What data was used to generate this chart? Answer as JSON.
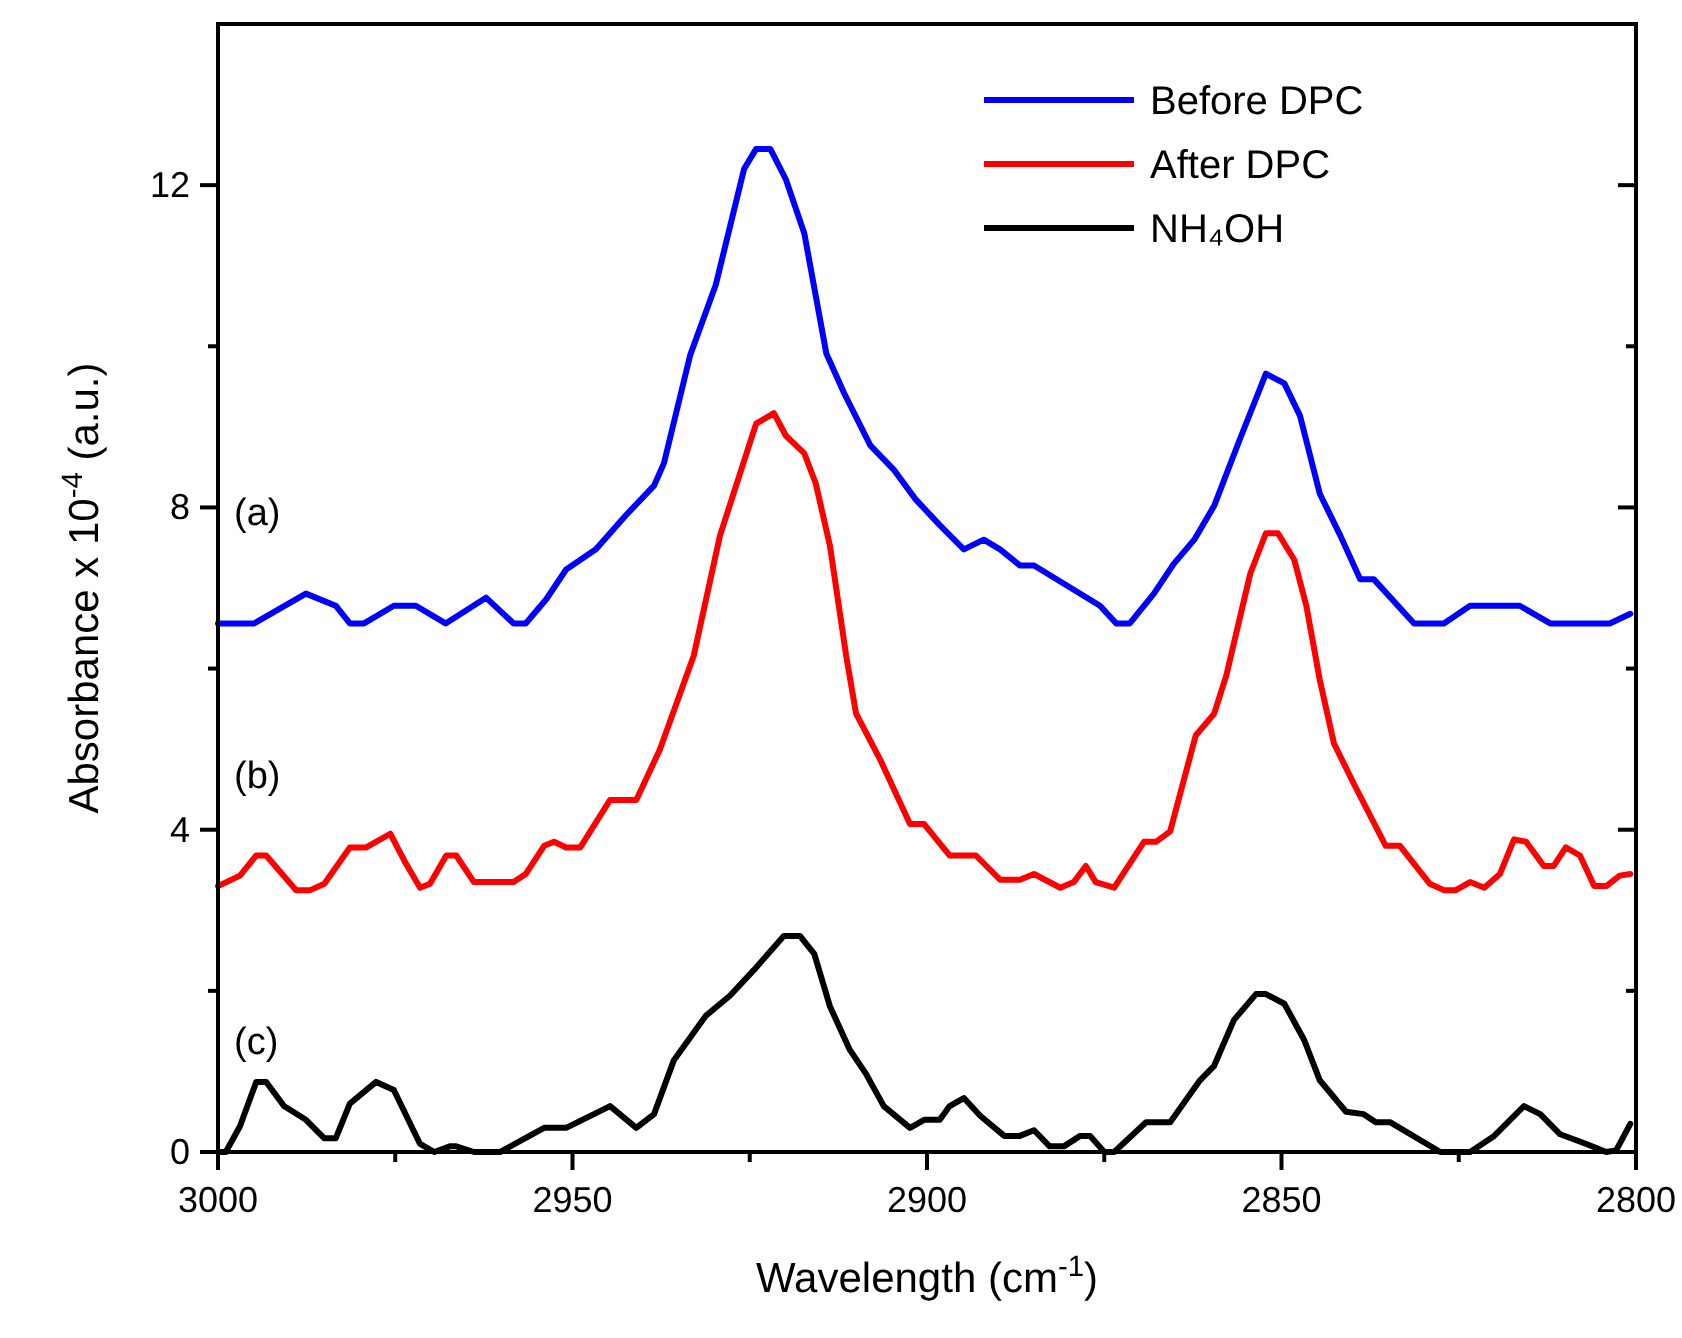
{
  "chart_data": {
    "type": "line",
    "xlabel": "Wavelength (cm$^{-1}$)",
    "ylabel": "Absorbance x 10$^{-4}$ (a.u.)",
    "xlim": [
      3000,
      2800
    ],
    "ylim": [
      0,
      14
    ],
    "xticks": [
      3000,
      {
        "value": 2975,
        "label": null
      },
      2950,
      {
        "value": 2925,
        "label": null
      },
      2900,
      {
        "value": 2875,
        "label": null
      },
      2850,
      {
        "value": 2825,
        "label": null
      },
      2800
    ],
    "yticks": [
      0,
      {
        "value": 2,
        "label": null
      },
      4,
      {
        "value": 6,
        "label": null
      },
      8,
      {
        "value": 10,
        "label": null
      },
      12
    ],
    "legend": "top right",
    "grid": false,
    "marker": "none",
    "line_style": "solid",
    "annotations": [
      "(a)",
      "(b)",
      "(c)"
    ],
    "series": [
      {
        "name": "Before DPC",
        "color": "#0000ff",
        "x": [
          3000,
          2994.9,
          2987.6,
          2983.4,
          2981.4,
          2979.4,
          2975.2,
          2972.1,
          2967.9,
          2962.2,
          2958.3,
          2956.6,
          2953.7,
          2950.9,
          2946.7,
          2942.5,
          2938.5,
          2937.1,
          2933.4,
          2929.8,
          2925.8,
          2924.1,
          2922.1,
          2919.9,
          2917.3,
          2914.2,
          2911.7,
          2908,
          2904.7,
          2901.6,
          2898.2,
          2894.8,
          2892,
          2889.7,
          2886.9,
          2884.9,
          2875.6,
          2873.3,
          2871.4,
          2868,
          2865.2,
          2862.3,
          2859.5,
          2855.9,
          2852.2,
          2849.6,
          2847.4,
          2844.6,
          2841.7,
          2838.9,
          2837,
          2831.3,
          2827.1,
          2823.4,
          2816.4,
          2812.1,
          2803.7,
          2800.8
        ],
        "values": [
          6.56,
          6.56,
          6.93,
          6.78,
          6.56,
          6.56,
          6.78,
          6.78,
          6.56,
          6.88,
          6.56,
          6.56,
          6.86,
          7.23,
          7.48,
          7.9,
          8.27,
          8.55,
          9.89,
          10.76,
          12.2,
          12.45,
          12.45,
          12.07,
          11.4,
          9.91,
          9.42,
          8.77,
          8.47,
          8.1,
          7.78,
          7.48,
          7.6,
          7.48,
          7.28,
          7.28,
          6.78,
          6.56,
          6.56,
          6.93,
          7.3,
          7.6,
          8.02,
          8.84,
          9.66,
          9.54,
          9.14,
          8.17,
          7.65,
          7.11,
          7.11,
          6.56,
          6.56,
          6.78,
          6.78,
          6.56,
          6.56,
          6.68
        ]
      },
      {
        "name": "After DPC",
        "color": "#ff0000",
        "x": [
          3000,
          2996.9,
          2994.6,
          2993.2,
          2989,
          2987,
          2985,
          2981.4,
          2979.1,
          2975.7,
          2973.5,
          2971.5,
          2970.1,
          2967.8,
          2966.4,
          2963.9,
          2958.3,
          2956.6,
          2954,
          2952.6,
          2950.9,
          2948.9,
          2944.7,
          2941,
          2937.7,
          2932.9,
          2929.2,
          2924.1,
          2921.6,
          2919.9,
          2917.3,
          2915.7,
          2913.7,
          2911.4,
          2910,
          2906.6,
          2902.4,
          2900.4,
          2898.2,
          2896.8,
          2893.1,
          2889.7,
          2886.9,
          2884.9,
          2881.2,
          2879.3,
          2877.6,
          2876.2,
          2873.6,
          2869.4,
          2867.7,
          2865.7,
          2862.1,
          2859.5,
          2857.8,
          2854.4,
          2852.2,
          2850.5,
          2848.2,
          2846.5,
          2844.6,
          2842.6,
          2839.8,
          2835.3,
          2833.3,
          2829.1,
          2827.1,
          2825.4,
          2823.4,
          2821.4,
          2819.2,
          2817.2,
          2815.5,
          2813,
          2811.6,
          2809.9,
          2807.9,
          2805.9,
          2804.2,
          2802.3,
          2800.8
        ],
        "values": [
          3.3,
          3.43,
          3.68,
          3.68,
          3.25,
          3.25,
          3.33,
          3.78,
          3.78,
          3.95,
          3.58,
          3.28,
          3.33,
          3.68,
          3.68,
          3.35,
          3.35,
          3.45,
          3.8,
          3.85,
          3.78,
          3.78,
          4.37,
          4.37,
          4.99,
          6.16,
          7.65,
          9.04,
          9.17,
          8.89,
          8.67,
          8.3,
          7.53,
          6.16,
          5.44,
          4.87,
          4.07,
          4.07,
          3.83,
          3.68,
          3.68,
          3.38,
          3.38,
          3.45,
          3.28,
          3.35,
          3.55,
          3.35,
          3.28,
          3.85,
          3.85,
          3.98,
          5.17,
          5.44,
          5.91,
          7.18,
          7.68,
          7.68,
          7.35,
          6.78,
          5.86,
          5.07,
          4.57,
          3.8,
          3.8,
          3.33,
          3.25,
          3.25,
          3.35,
          3.28,
          3.45,
          3.88,
          3.85,
          3.55,
          3.55,
          3.78,
          3.68,
          3.3,
          3.3,
          3.43,
          3.45
        ]
      },
      {
        "name": "NH₄OH",
        "color": "#000000",
        "x": [
          3000,
          2998.9,
          2996.9,
          2994.6,
          2993.2,
          2990.7,
          2987.6,
          2985,
          2983.4,
          2981.4,
          2977.7,
          2975.2,
          2971.5,
          2969.5,
          2967.3,
          2966.4,
          2963.9,
          2960.2,
          2954,
          2950.9,
          2944.7,
          2941,
          2938.5,
          2935.7,
          2931.2,
          2927.8,
          2924.4,
          2920.2,
          2917.9,
          2915.9,
          2913.7,
          2910.9,
          2908.6,
          2906.1,
          2902.4,
          2900.4,
          2898.2,
          2896.8,
          2894.8,
          2892.5,
          2889.1,
          2886.9,
          2884.9,
          2882.7,
          2880.7,
          2878.4,
          2877,
          2875,
          2873.6,
          2869.1,
          2865.7,
          2861.5,
          2859.5,
          2856.7,
          2853.6,
          2852.2,
          2849.6,
          2846.8,
          2844.6,
          2840.9,
          2838.4,
          2836.7,
          2834.7,
          2827.6,
          2823.4,
          2820,
          2815.8,
          2813.5,
          2810.7,
          2807,
          2804.2,
          2802.8,
          2800.8
        ],
        "values": [
          0,
          0,
          0.32,
          0.87,
          0.87,
          0.57,
          0.4,
          0.17,
          0.17,
          0.6,
          0.87,
          0.77,
          0.1,
          0,
          0.07,
          0.07,
          0,
          0,
          0.3,
          0.3,
          0.57,
          0.3,
          0.47,
          1.14,
          1.69,
          1.94,
          2.26,
          2.68,
          2.68,
          2.46,
          1.81,
          1.27,
          0.97,
          0.57,
          0.3,
          0.4,
          0.4,
          0.57,
          0.67,
          0.45,
          0.2,
          0.2,
          0.27,
          0.07,
          0.07,
          0.2,
          0.2,
          0,
          0,
          0.37,
          0.37,
          0.89,
          1.07,
          1.64,
          1.96,
          1.96,
          1.84,
          1.39,
          0.89,
          0.5,
          0.47,
          0.37,
          0.37,
          0,
          0,
          0.2,
          0.57,
          0.47,
          0.22,
          0.1,
          0,
          0.02,
          0.35
        ]
      }
    ]
  }
}
